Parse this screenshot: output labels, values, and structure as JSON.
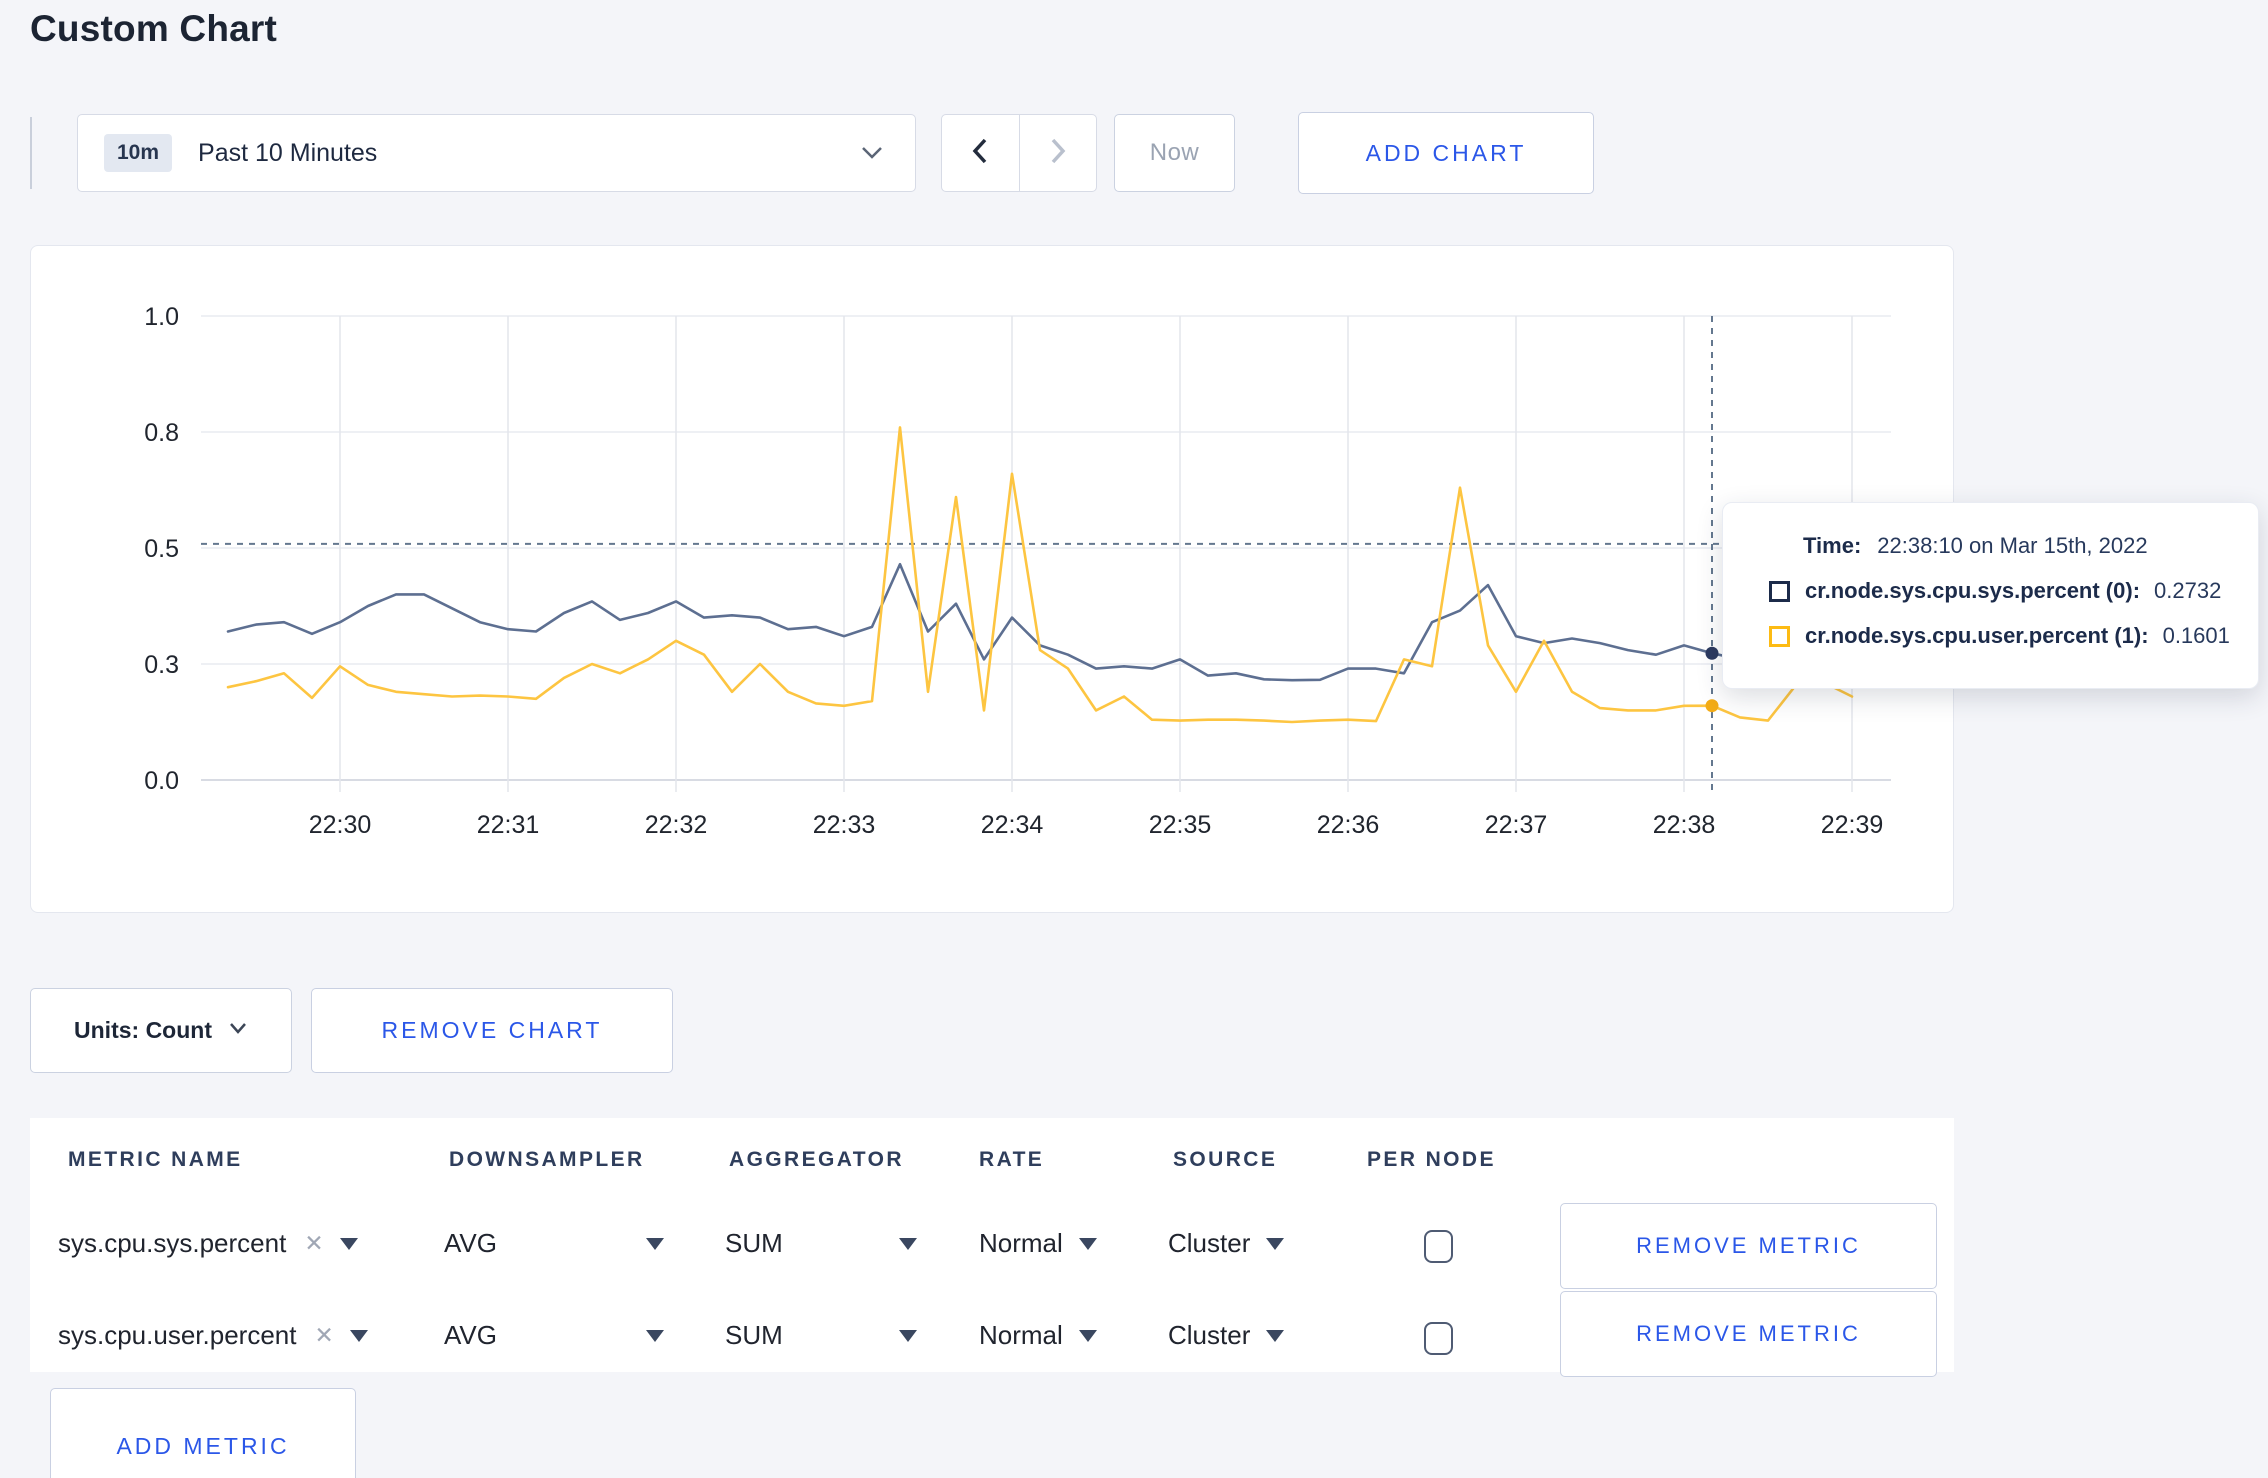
{
  "page": {
    "title": "Custom Chart",
    "background": "#f4f5f9",
    "accent_blue": "#2b57e8"
  },
  "toolbar": {
    "time_range": {
      "badge": "10m",
      "label": "Past 10 Minutes"
    },
    "now_label": "Now",
    "add_chart_label": "ADD CHART",
    "back_enabled": true,
    "forward_enabled": false
  },
  "icons": {
    "time_range_expand": "chevron-down",
    "history_back": "chevron-left",
    "history_forward": "chevron-right",
    "units_expand": "chevron-down",
    "metric_clear": "✕",
    "select_caret": "triangle-down"
  },
  "chart_data": {
    "type": "line",
    "title": "",
    "xlabel": "",
    "ylabel": "",
    "ylim": [
      0,
      1
    ],
    "grid": true,
    "legend_position": "none",
    "y_tick_values": [
      0,
      0.25,
      0.5,
      0.75,
      1.0
    ],
    "y_tick_labels": [
      "0.0",
      "0.3",
      "0.5",
      "0.8",
      "1.0"
    ],
    "x_tick_labels": [
      "22:30",
      "22:31",
      "22:32",
      "22:33",
      "22:34",
      "22:35",
      "22:36",
      "22:37",
      "22:38",
      "22:39"
    ],
    "x_start": "22:29:20",
    "x_interval_seconds": 10,
    "series": [
      {
        "name": "cr.node.sys.cpu.sys.percent",
        "color": "#5d6f91",
        "dot_color": "#2c3a5f",
        "values": [
          0.32,
          0.335,
          0.34,
          0.315,
          0.34,
          0.375,
          0.4,
          0.4,
          0.37,
          0.34,
          0.325,
          0.32,
          0.36,
          0.385,
          0.345,
          0.36,
          0.385,
          0.35,
          0.355,
          0.35,
          0.325,
          0.33,
          0.31,
          0.33,
          0.465,
          0.32,
          0.38,
          0.26,
          0.35,
          0.29,
          0.27,
          0.24,
          0.245,
          0.24,
          0.26,
          0.225,
          0.23,
          0.217,
          0.215,
          0.216,
          0.24,
          0.24,
          0.23,
          0.34,
          0.365,
          0.42,
          0.31,
          0.295,
          0.305,
          0.295,
          0.28,
          0.27,
          0.29,
          0.2732,
          0.26,
          0.27,
          0.285,
          0.3,
          0.295
        ]
      },
      {
        "name": "cr.node.sys.cpu.user.percent",
        "color": "#fdc541",
        "dot_color": "#f3ac16",
        "values": [
          0.2,
          0.213,
          0.23,
          0.177,
          0.245,
          0.205,
          0.19,
          0.185,
          0.18,
          0.182,
          0.18,
          0.175,
          0.22,
          0.25,
          0.23,
          0.26,
          0.3,
          0.27,
          0.19,
          0.25,
          0.19,
          0.165,
          0.16,
          0.17,
          0.76,
          0.19,
          0.61,
          0.15,
          0.66,
          0.28,
          0.24,
          0.15,
          0.18,
          0.13,
          0.128,
          0.13,
          0.13,
          0.128,
          0.125,
          0.128,
          0.13,
          0.127,
          0.26,
          0.245,
          0.63,
          0.29,
          0.19,
          0.3,
          0.19,
          0.155,
          0.15,
          0.15,
          0.16,
          0.1601,
          0.135,
          0.128,
          0.205,
          0.21,
          0.18
        ]
      }
    ],
    "crosshair": {
      "index": 53,
      "time": "22:38:10",
      "hline_value": 0.509
    }
  },
  "tooltip": {
    "time_label": "Time:",
    "time_value": "22:38:10 on Mar 15th, 2022",
    "series": [
      {
        "name": "cr.node.sys.cpu.sys.percent (0):",
        "value": "0.2732",
        "swatch_color": "#1c2b4a"
      },
      {
        "name": "cr.node.sys.cpu.user.percent (1):",
        "value": "0.1601",
        "swatch_color": "#fdbb13"
      }
    ]
  },
  "chart_controls": {
    "units_label": "Units: Count",
    "remove_chart_label": "REMOVE CHART"
  },
  "metrics_table": {
    "headers": [
      "METRIC NAME",
      "DOWNSAMPLER",
      "AGGREGATOR",
      "RATE",
      "SOURCE",
      "PER NODE"
    ],
    "rows": [
      {
        "metric": "sys.cpu.sys.percent",
        "downsampler": "AVG",
        "aggregator": "SUM",
        "rate": "Normal",
        "source": "Cluster",
        "per_node_checked": false,
        "remove_label": "REMOVE METRIC"
      },
      {
        "metric": "sys.cpu.user.percent",
        "downsampler": "AVG",
        "aggregator": "SUM",
        "rate": "Normal",
        "source": "Cluster",
        "per_node_checked": false,
        "remove_label": "REMOVE METRIC"
      }
    ],
    "add_metric_label": "ADD METRIC"
  }
}
